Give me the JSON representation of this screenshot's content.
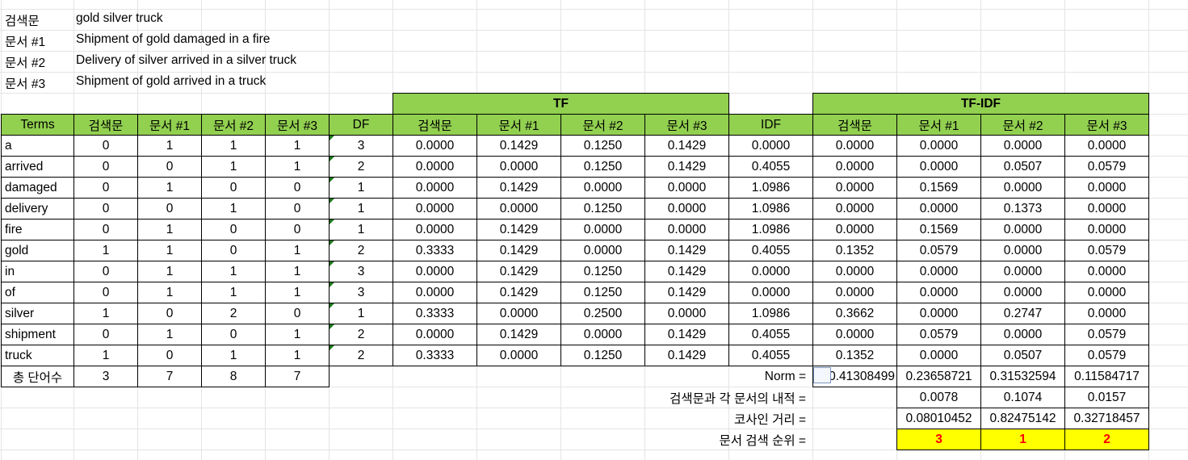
{
  "info": [
    {
      "key": "검색문",
      "value": "gold silver truck"
    },
    {
      "key": "문서 #1",
      "value": "Shipment of gold damaged in a fire"
    },
    {
      "key": "문서 #2",
      "value": "Delivery of silver arrived in a silver truck"
    },
    {
      "key": "문서 #3",
      "value": "Shipment of gold arrived in a truck"
    }
  ],
  "groups": {
    "tf": "TF",
    "tfidf": "TF-IDF"
  },
  "headers": [
    "Terms",
    "검색문",
    "문서 #1",
    "문서 #2",
    "문서 #3",
    "DF",
    "검색문",
    "문서 #1",
    "문서 #2",
    "문서 #3",
    "IDF",
    "검색문",
    "문서 #1",
    "문서 #2",
    "문서 #3"
  ],
  "rows": [
    [
      "a",
      "0",
      "1",
      "1",
      "1",
      "3",
      "0.0000",
      "0.1429",
      "0.1250",
      "0.1429",
      "0.0000",
      "0.0000",
      "0.0000",
      "0.0000",
      "0.0000"
    ],
    [
      "arrived",
      "0",
      "0",
      "1",
      "1",
      "2",
      "0.0000",
      "0.0000",
      "0.1250",
      "0.1429",
      "0.4055",
      "0.0000",
      "0.0000",
      "0.0507",
      "0.0579"
    ],
    [
      "damaged",
      "0",
      "1",
      "0",
      "0",
      "1",
      "0.0000",
      "0.1429",
      "0.0000",
      "0.0000",
      "1.0986",
      "0.0000",
      "0.1569",
      "0.0000",
      "0.0000"
    ],
    [
      "delivery",
      "0",
      "0",
      "1",
      "0",
      "1",
      "0.0000",
      "0.0000",
      "0.1250",
      "0.0000",
      "1.0986",
      "0.0000",
      "0.0000",
      "0.1373",
      "0.0000"
    ],
    [
      "fire",
      "0",
      "1",
      "0",
      "0",
      "1",
      "0.0000",
      "0.1429",
      "0.0000",
      "0.0000",
      "1.0986",
      "0.0000",
      "0.1569",
      "0.0000",
      "0.0000"
    ],
    [
      "gold",
      "1",
      "1",
      "0",
      "1",
      "2",
      "0.3333",
      "0.1429",
      "0.0000",
      "0.1429",
      "0.4055",
      "0.1352",
      "0.0579",
      "0.0000",
      "0.0579"
    ],
    [
      "in",
      "0",
      "1",
      "1",
      "1",
      "3",
      "0.0000",
      "0.1429",
      "0.1250",
      "0.1429",
      "0.0000",
      "0.0000",
      "0.0000",
      "0.0000",
      "0.0000"
    ],
    [
      "of",
      "0",
      "1",
      "1",
      "1",
      "3",
      "0.0000",
      "0.1429",
      "0.1250",
      "0.1429",
      "0.0000",
      "0.0000",
      "0.0000",
      "0.0000",
      "0.0000"
    ],
    [
      "silver",
      "1",
      "0",
      "2",
      "0",
      "1",
      "0.3333",
      "0.0000",
      "0.2500",
      "0.0000",
      "1.0986",
      "0.3662",
      "0.0000",
      "0.2747",
      "0.0000"
    ],
    [
      "shipment",
      "0",
      "1",
      "0",
      "1",
      "2",
      "0.0000",
      "0.1429",
      "0.0000",
      "0.1429",
      "0.4055",
      "0.0000",
      "0.0579",
      "0.0000",
      "0.0579"
    ],
    [
      "truck",
      "1",
      "0",
      "1",
      "1",
      "2",
      "0.3333",
      "0.0000",
      "0.1250",
      "0.1429",
      "0.4055",
      "0.1352",
      "0.0000",
      "0.0507",
      "0.0579"
    ]
  ],
  "total": {
    "label": "총 단어수",
    "values": [
      "3",
      "7",
      "8",
      "7"
    ]
  },
  "norm": {
    "label": "Norm =",
    "values": [
      "0.41308499",
      "0.23658721",
      "0.31532594",
      "0.11584717"
    ]
  },
  "dot": {
    "label": "검색문과 각 문서의 내적 =",
    "values": [
      "0.0078",
      "0.1074",
      "0.0157"
    ]
  },
  "cosine": {
    "label": "코사인 거리 =",
    "values": [
      "0.08010452",
      "0.82475142",
      "0.32718457"
    ]
  },
  "rank": {
    "label": "문서 검색 순위 =",
    "values": [
      "3",
      "1",
      "2"
    ]
  },
  "colors": {
    "header_green": "#92d050",
    "rank_yellow": "#ffff00",
    "rank_text": "#ff0000"
  }
}
